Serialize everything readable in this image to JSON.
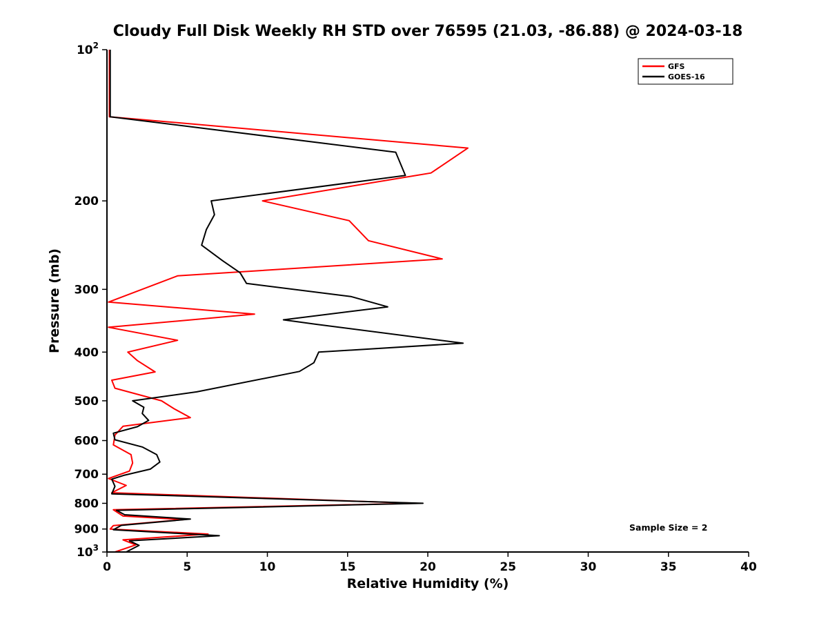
{
  "title": "Cloudy Full Disk Weekly RH STD over 76595 (21.03, -86.88) @ 2024-03-18",
  "annotation": "Sample Size = 2",
  "legend": [
    {
      "label": "GFS",
      "color": "#ff0000"
    },
    {
      "label": "GOES-16",
      "color": "#000000"
    }
  ],
  "chart_data": {
    "type": "line",
    "title": "Cloudy Full Disk Weekly RH STD over 76595 (21.03, -86.88) @ 2024-03-18",
    "xlabel": "Relative Humidity (%)",
    "ylabel": "Pressure (mb)",
    "xlim": [
      0,
      40
    ],
    "ylim_pressure": [
      100,
      1000
    ],
    "y_axis_scale": "log",
    "grid": false,
    "legend_position": "top-right",
    "x_ticks": [
      0,
      5,
      10,
      15,
      20,
      25,
      30,
      35,
      40
    ],
    "y_ticks": [
      {
        "p": 100,
        "label": "10",
        "exp": "2"
      },
      {
        "p": 200,
        "label": "200"
      },
      {
        "p": 300,
        "label": "300"
      },
      {
        "p": 400,
        "label": "400"
      },
      {
        "p": 500,
        "label": "500"
      },
      {
        "p": 600,
        "label": "600"
      },
      {
        "p": 700,
        "label": "700"
      },
      {
        "p": 800,
        "label": "800"
      },
      {
        "p": 900,
        "label": "900"
      },
      {
        "p": 1000,
        "label": "10",
        "exp": "3"
      }
    ],
    "series": [
      {
        "name": "GFS",
        "color": "#ff0000",
        "points_pressure_rh": [
          [
            100,
            0.15
          ],
          [
            136,
            0.15
          ],
          [
            157,
            22.5
          ],
          [
            176,
            20.2
          ],
          [
            200,
            9.7
          ],
          [
            219,
            15.1
          ],
          [
            240,
            16.3
          ],
          [
            261,
            20.9
          ],
          [
            282,
            4.4
          ],
          [
            318,
            0.1
          ],
          [
            336,
            9.2
          ],
          [
            357,
            0.1
          ],
          [
            379,
            4.4
          ],
          [
            400,
            1.3
          ],
          [
            416,
            1.9
          ],
          [
            438,
            3.0
          ],
          [
            455,
            0.3
          ],
          [
            472,
            0.5
          ],
          [
            500,
            3.4
          ],
          [
            519,
            4.2
          ],
          [
            540,
            5.2
          ],
          [
            562,
            1.0
          ],
          [
            585,
            0.5
          ],
          [
            612,
            0.4
          ],
          [
            640,
            1.5
          ],
          [
            665,
            1.6
          ],
          [
            690,
            1.4
          ],
          [
            714,
            0.1
          ],
          [
            737,
            1.2
          ],
          [
            762,
            0.3
          ],
          [
            800,
            19.3
          ],
          [
            824,
            0.4
          ],
          [
            848,
            1.0
          ],
          [
            862,
            4.8
          ],
          [
            886,
            0.4
          ],
          [
            900,
            0.2
          ],
          [
            921,
            6.3
          ],
          [
            946,
            1.0
          ],
          [
            968,
            1.8
          ],
          [
            1000,
            0.5
          ]
        ]
      },
      {
        "name": "GOES-16",
        "color": "#000000",
        "points_pressure_rh": [
          [
            100,
            0.2
          ],
          [
            136,
            0.2
          ],
          [
            160,
            18.0
          ],
          [
            178,
            18.6
          ],
          [
            200,
            6.5
          ],
          [
            213,
            6.7
          ],
          [
            228,
            6.2
          ],
          [
            245,
            5.9
          ],
          [
            263,
            7.2
          ],
          [
            278,
            8.3
          ],
          [
            292,
            8.7
          ],
          [
            310,
            15.2
          ],
          [
            325,
            17.5
          ],
          [
            345,
            11.0
          ],
          [
            352,
            13.0
          ],
          [
            384,
            22.2
          ],
          [
            400,
            13.2
          ],
          [
            420,
            12.9
          ],
          [
            437,
            12.0
          ],
          [
            480,
            5.6
          ],
          [
            500,
            1.6
          ],
          [
            515,
            2.3
          ],
          [
            530,
            2.2
          ],
          [
            547,
            2.6
          ],
          [
            563,
            1.9
          ],
          [
            580,
            0.4
          ],
          [
            598,
            0.5
          ],
          [
            618,
            2.2
          ],
          [
            640,
            3.1
          ],
          [
            662,
            3.3
          ],
          [
            684,
            2.7
          ],
          [
            703,
            1.1
          ],
          [
            716,
            0.3
          ],
          [
            740,
            0.5
          ],
          [
            766,
            0.3
          ],
          [
            800,
            19.7
          ],
          [
            826,
            0.6
          ],
          [
            843,
            1.1
          ],
          [
            860,
            5.2
          ],
          [
            885,
            0.9
          ],
          [
            903,
            0.4
          ],
          [
            928,
            7.0
          ],
          [
            950,
            1.4
          ],
          [
            970,
            2.0
          ],
          [
            1000,
            1.2
          ]
        ]
      }
    ]
  }
}
